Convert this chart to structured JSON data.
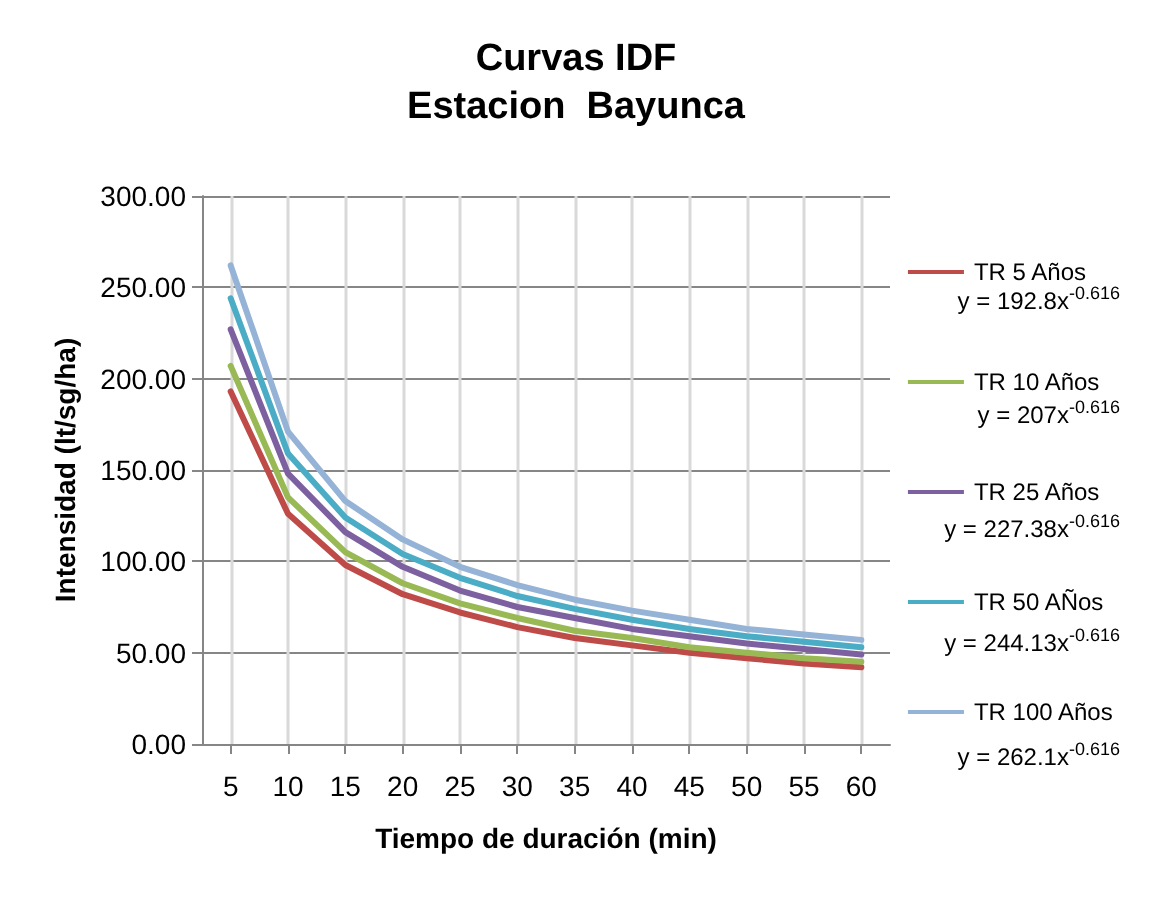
{
  "chart_data": {
    "type": "line",
    "title": "Curvas IDF\nEstacion  Bayunca",
    "xlabel": "Tiempo de duración (min)",
    "ylabel": "Intensidad (lt/sg/ha)",
    "x": [
      5,
      10,
      15,
      20,
      25,
      30,
      35,
      40,
      45,
      50,
      55,
      60
    ],
    "xlim": [
      2.5,
      62.5
    ],
    "xticks": [
      5,
      10,
      15,
      20,
      25,
      30,
      35,
      40,
      45,
      50,
      55,
      60
    ],
    "ylim": [
      0,
      300
    ],
    "yticks": [
      {
        "value": 0,
        "label": "0.00"
      },
      {
        "value": 50,
        "label": "50.00"
      },
      {
        "value": 100,
        "label": "100.00"
      },
      {
        "value": 150,
        "label": "150.00"
      },
      {
        "value": 200,
        "label": "200.00"
      },
      {
        "value": 250,
        "label": "250.00"
      },
      {
        "value": 300,
        "label": "300.00"
      }
    ],
    "grid": true,
    "legend": "right",
    "marker": "none",
    "line_style": "solid",
    "series": [
      {
        "name": "TR 5 Años",
        "color": "#be4b48",
        "values": [
          193,
          126,
          98,
          82,
          72,
          64,
          58,
          54,
          50,
          47,
          44,
          42
        ]
      },
      {
        "name": "TR 10 Años",
        "color": "#98b954",
        "values": [
          207,
          135,
          105,
          88,
          77,
          69,
          62,
          58,
          53,
          50,
          47,
          45
        ]
      },
      {
        "name": "TR 25 Años",
        "color": "#7d60a0",
        "values": [
          227,
          148,
          116,
          97,
          84,
          75,
          69,
          63,
          59,
          55,
          52,
          49
        ]
      },
      {
        "name": "TR 50 AÑos",
        "color": "#4bacc6",
        "values": [
          244,
          159,
          124,
          104,
          91,
          81,
          74,
          68,
          63,
          59,
          56,
          53
        ]
      },
      {
        "name": "TR 100 Años",
        "color": "#94b3d6",
        "values": [
          262,
          171,
          133,
          112,
          97,
          87,
          79,
          73,
          68,
          63,
          60,
          57
        ]
      }
    ],
    "annotations": [
      "y = 192.8x$^{-0.616}$",
      "y = 207x$^{-0.616}$",
      "y = 227.38x$^{-0.616}$",
      "y = 244.13x$^{-0.616}$",
      "y = 262.1x$^{-0.616}$"
    ]
  }
}
